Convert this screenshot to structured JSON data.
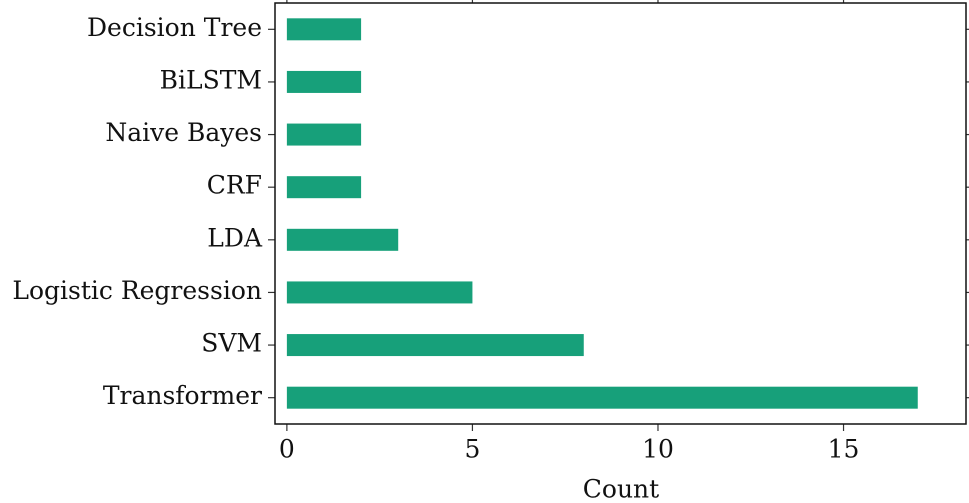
{
  "chart_data": {
    "type": "barh",
    "xlabel": "Count",
    "categories": [
      "Decision Tree",
      "BiLSTM",
      "Naive Bayes",
      "CRF",
      "LDA",
      "Logistic Regression",
      "SVM",
      "Transformer"
    ],
    "values": [
      2,
      2,
      2,
      2,
      3,
      5,
      8,
      17
    ],
    "color": "#17a07a",
    "xlim": [
      -0.32,
      18.3
    ],
    "xticks": [
      0,
      5,
      10,
      15
    ],
    "grid": false
  }
}
